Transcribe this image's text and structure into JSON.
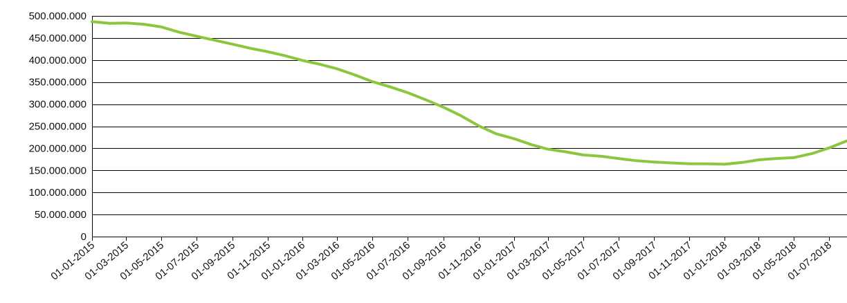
{
  "chart_data": {
    "type": "line",
    "title": "",
    "xlabel": "",
    "ylabel": "",
    "grid": true,
    "legend": "none",
    "ylim": [
      0,
      500000000
    ],
    "xlim": [
      "2015-01-01",
      "2018-08-01"
    ],
    "y_ticks": [
      0,
      50000000,
      100000000,
      150000000,
      200000000,
      250000000,
      300000000,
      350000000,
      400000000,
      450000000,
      500000000
    ],
    "y_tick_labels": [
      "0",
      "50.000.000",
      "100.000.000",
      "150.000.000",
      "200.000.000",
      "250.000.000",
      "300.000.000",
      "350.000.000",
      "400.000.000",
      "450.000.000",
      "500.000.000"
    ],
    "x_ticks": [
      "2015-01-01",
      "2015-03-01",
      "2015-05-01",
      "2015-07-01",
      "2015-09-01",
      "2015-11-01",
      "2016-01-01",
      "2016-03-01",
      "2016-05-01",
      "2016-07-01",
      "2016-09-01",
      "2016-11-01",
      "2017-01-01",
      "2017-03-01",
      "2017-05-01",
      "2017-07-01",
      "2017-09-01",
      "2017-11-01",
      "2018-01-01",
      "2018-03-01",
      "2018-05-01",
      "2018-07-01"
    ],
    "x_tick_labels": [
      "01-01-2015",
      "01-03-2015",
      "01-05-2015",
      "01-07-2015",
      "01-09-2015",
      "01-11-2015",
      "01-01-2016",
      "01-03-2016",
      "01-05-2016",
      "01-07-2016",
      "01-09-2016",
      "01-11-2016",
      "01-01-2017",
      "01-03-2017",
      "01-05-2017",
      "01-07-2017",
      "01-09-2017",
      "01-11-2017",
      "01-01-2018",
      "01-03-2018",
      "01-05-2018",
      "01-07-2018"
    ],
    "series": [
      {
        "color": "#8cc63f",
        "x": [
          "2015-01-01",
          "2015-02-01",
          "2015-03-01",
          "2015-04-01",
          "2015-05-01",
          "2015-06-01",
          "2015-07-01",
          "2015-08-01",
          "2015-09-01",
          "2015-10-01",
          "2015-11-01",
          "2015-12-01",
          "2016-01-01",
          "2016-02-01",
          "2016-03-01",
          "2016-04-01",
          "2016-05-01",
          "2016-06-01",
          "2016-07-01",
          "2016-08-01",
          "2016-09-01",
          "2016-10-01",
          "2016-11-01",
          "2016-12-01",
          "2017-01-01",
          "2017-02-01",
          "2017-03-01",
          "2017-04-01",
          "2017-05-01",
          "2017-06-01",
          "2017-07-01",
          "2017-08-01",
          "2017-09-01",
          "2017-10-01",
          "2017-11-01",
          "2017-12-01",
          "2018-01-01",
          "2018-02-01",
          "2018-03-01",
          "2018-04-01",
          "2018-05-01",
          "2018-06-01",
          "2018-07-01",
          "2018-08-01"
        ],
        "values": [
          487000000,
          483000000,
          484000000,
          481000000,
          475000000,
          463000000,
          454000000,
          445000000,
          436000000,
          427000000,
          419000000,
          410000000,
          399000000,
          390000000,
          380000000,
          366000000,
          351000000,
          339000000,
          326000000,
          310000000,
          293000000,
          274000000,
          251000000,
          233000000,
          222000000,
          208000000,
          198000000,
          192000000,
          185000000,
          182000000,
          177000000,
          172000000,
          169000000,
          167000000,
          165000000,
          165000000,
          164000000,
          168000000,
          174000000,
          177000000,
          179000000,
          188000000,
          201000000,
          217000000
        ]
      }
    ]
  }
}
